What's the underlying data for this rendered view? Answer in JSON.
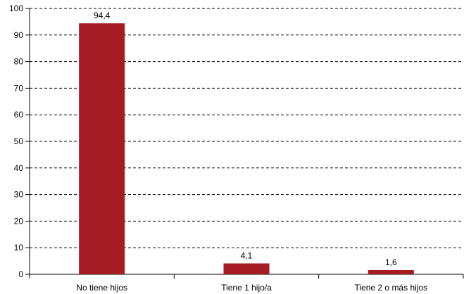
{
  "chart_data": {
    "type": "bar",
    "title": "",
    "xlabel": "",
    "ylabel": "",
    "categories": [
      "No tiene hijos",
      "Tiene 1 hijo/a",
      "Tiene 2 o más hijos"
    ],
    "values": [
      94.4,
      4.1,
      1.6
    ],
    "value_labels": [
      "94,4",
      "4,1",
      "1,6"
    ],
    "ylim": [
      0,
      100
    ],
    "yticks": [
      "0",
      "10",
      "20",
      "30",
      "40",
      "50",
      "60",
      "70",
      "80",
      "90",
      "100"
    ],
    "grid": true,
    "legend": "none",
    "colors": {
      "bar": "#a51c24",
      "grid": "#000000",
      "axis": "#000000"
    }
  }
}
